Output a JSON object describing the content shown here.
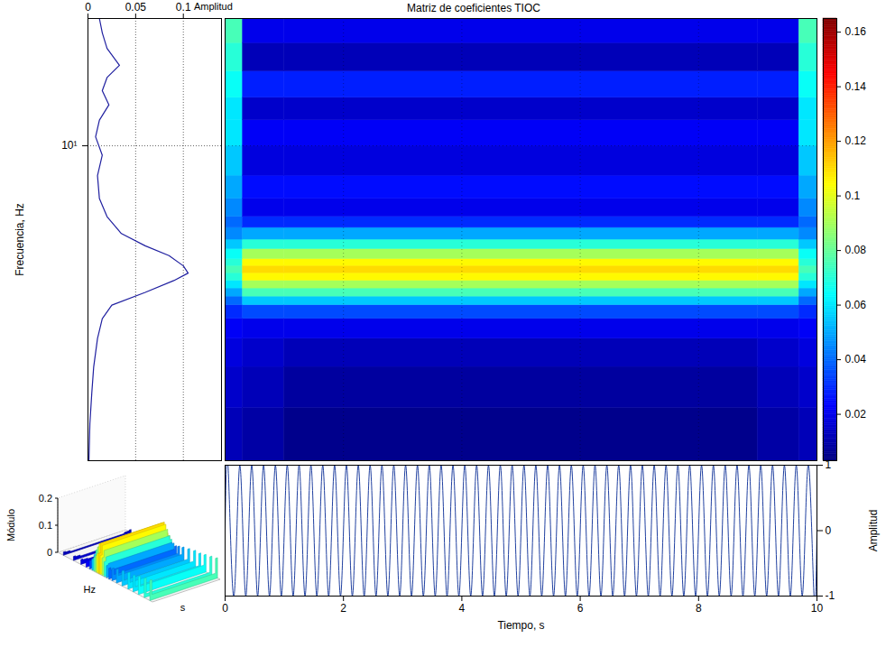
{
  "chart_data": [
    {
      "type": "heatmap",
      "title": "Matriz de coeficientes TIOC",
      "log": "y",
      "tick_labels": false,
      "grid": true,
      "xlim": [
        0,
        10
      ],
      "ylim": [
        1.8,
        20
      ],
      "xticks": [
        2,
        4,
        6,
        8
      ],
      "yticks": [
        10
      ],
      "x_edges": [
        0,
        0.3,
        1,
        9,
        9.7,
        10
      ],
      "y_edges": [
        1.8,
        2.4,
        3.0,
        3.5,
        3.9,
        4.2,
        4.4,
        4.6,
        4.8,
        5.0,
        5.2,
        5.4,
        5.7,
        6.0,
        6.4,
        6.8,
        7.5,
        8.5,
        10,
        11.5,
        13,
        15,
        17.5,
        20
      ],
      "cells": [
        [
          0.012,
          0.009,
          0.005,
          0.009,
          0.012
        ],
        [
          0.015,
          0.012,
          0.008,
          0.012,
          0.015
        ],
        [
          0.018,
          0.015,
          0.012,
          0.015,
          0.018
        ],
        [
          0.022,
          0.02,
          0.02,
          0.02,
          0.022
        ],
        [
          0.03,
          0.035,
          0.035,
          0.035,
          0.03
        ],
        [
          0.04,
          0.055,
          0.055,
          0.055,
          0.04
        ],
        [
          0.05,
          0.075,
          0.075,
          0.075,
          0.05
        ],
        [
          0.06,
          0.09,
          0.09,
          0.09,
          0.06
        ],
        [
          0.07,
          0.105,
          0.105,
          0.105,
          0.07
        ],
        [
          0.075,
          0.11,
          0.11,
          0.11,
          0.075
        ],
        [
          0.07,
          0.105,
          0.105,
          0.105,
          0.07
        ],
        [
          0.065,
          0.09,
          0.09,
          0.09,
          0.065
        ],
        [
          0.055,
          0.07,
          0.07,
          0.07,
          0.055
        ],
        [
          0.045,
          0.05,
          0.05,
          0.05,
          0.045
        ],
        [
          0.04,
          0.03,
          0.03,
          0.03,
          0.04
        ],
        [
          0.045,
          0.02,
          0.02,
          0.02,
          0.045
        ],
        [
          0.05,
          0.025,
          0.025,
          0.025,
          0.05
        ],
        [
          0.055,
          0.018,
          0.018,
          0.018,
          0.055
        ],
        [
          0.06,
          0.022,
          0.022,
          0.022,
          0.06
        ],
        [
          0.06,
          0.015,
          0.015,
          0.015,
          0.06
        ],
        [
          0.065,
          0.028,
          0.028,
          0.028,
          0.065
        ],
        [
          0.07,
          0.012,
          0.012,
          0.012,
          0.07
        ],
        [
          0.075,
          0.02,
          0.02,
          0.02,
          0.075
        ]
      ],
      "colorbar": {
        "lim": [
          0.003,
          0.165
        ],
        "ticks": [
          0.02,
          0.04,
          0.06,
          0.08,
          0.1,
          0.12,
          0.14,
          0.16
        ]
      }
    },
    {
      "type": "line",
      "x_label": "Amplitud",
      "y_label": "Frecuencia, Hz",
      "log": "y",
      "grid": true,
      "color": "#2020a0",
      "xlim": [
        0,
        0.14
      ],
      "xticks": [
        0,
        0.05,
        0.1
      ],
      "ylim": [
        1.8,
        20
      ],
      "yticks": [
        {
          "value": 10,
          "label": "10¹"
        }
      ],
      "x": [
        0.001,
        0.002,
        0.004,
        0.006,
        0.01,
        0.015,
        0.025,
        0.06,
        0.09,
        0.105,
        0.1,
        0.085,
        0.06,
        0.035,
        0.02,
        0.012,
        0.01,
        0.015,
        0.008,
        0.012,
        0.022,
        0.015,
        0.02,
        0.033,
        0.02,
        0.015,
        0.012
      ],
      "y": [
        1.8,
        2.2,
        2.6,
        3.0,
        3.5,
        3.9,
        4.2,
        4.5,
        4.8,
        5.0,
        5.2,
        5.5,
        5.8,
        6.2,
        6.8,
        7.5,
        8.5,
        9.5,
        10.5,
        11.5,
        12.5,
        13.5,
        14.5,
        15.5,
        17,
        18.5,
        20
      ]
    },
    {
      "type": "line",
      "x_label": "Tiempo, s",
      "y_label": "Amplitud",
      "color": "#2040a0",
      "xlim": [
        0,
        10
      ],
      "xticks": [
        0,
        2,
        4,
        6,
        8,
        10
      ],
      "ylim": [
        -1,
        1
      ],
      "yticks": [
        -1,
        0,
        1
      ],
      "x": [
        0,
        0.05,
        0.15,
        0.25,
        0.35,
        0.45,
        0.55,
        0.65,
        0.75,
        0.85,
        0.95,
        1.05,
        1.15,
        1.25,
        1.35,
        1.45,
        1.55,
        1.65,
        1.75,
        1.85,
        1.95,
        2.05,
        2.15,
        2.25,
        2.35,
        2.45,
        2.55,
        2.65,
        2.75,
        2.85,
        2.95,
        3.05,
        3.15,
        3.25,
        3.35,
        3.45,
        3.55,
        3.65,
        3.75,
        3.85,
        3.95,
        4.05,
        4.15,
        4.25,
        4.35,
        4.45,
        4.55,
        4.65,
        4.75,
        4.85,
        4.95,
        5.05,
        5.15,
        5.25,
        5.35,
        5.45,
        5.55,
        5.65,
        5.75,
        5.85,
        5.95,
        6.05,
        6.15,
        6.25,
        6.35,
        6.45,
        6.55,
        6.65,
        6.75,
        6.85,
        6.95,
        7.05,
        7.15,
        7.25,
        7.35,
        7.45,
        7.55,
        7.65,
        7.75,
        7.85,
        7.95,
        8.05,
        8.15,
        8.25,
        8.35,
        8.45,
        8.55,
        8.65,
        8.75,
        8.85,
        8.95,
        9.05,
        9.15,
        9.25,
        9.35,
        9.45,
        9.55,
        9.65,
        9.75,
        9.85,
        9.95,
        10
      ],
      "values": [
        0,
        1,
        -1,
        1,
        -1,
        1,
        -1,
        1,
        -1,
        1,
        -1,
        1,
        -1,
        1,
        -1,
        1,
        -1,
        1,
        -1,
        1,
        -1,
        1,
        -1,
        1,
        -1,
        1,
        -1,
        1,
        -1,
        1,
        -1,
        1,
        -1,
        1,
        -1,
        1,
        -1,
        1,
        -1,
        1,
        -1,
        1,
        -1,
        1,
        -1,
        1,
        -1,
        1,
        -1,
        1,
        -1,
        1,
        -1,
        1,
        -1,
        1,
        -1,
        1,
        -1,
        1,
        -1,
        1,
        -1,
        1,
        -1,
        1,
        -1,
        1,
        -1,
        1,
        -1,
        1,
        -1,
        1,
        -1,
        1,
        -1,
        1,
        -1,
        1,
        -1,
        1,
        -1,
        1,
        -1,
        1,
        -1,
        1,
        -1,
        1,
        -1,
        1,
        -1,
        1,
        -1,
        1,
        -1,
        1,
        -1,
        1,
        -1,
        0
      ]
    },
    {
      "type": "surface",
      "z_label": "Módulo",
      "zlim": [
        0,
        0.2
      ],
      "zticks": [
        0,
        0.1,
        0.2
      ],
      "x_label": "Hz",
      "y_label": "s"
    }
  ]
}
